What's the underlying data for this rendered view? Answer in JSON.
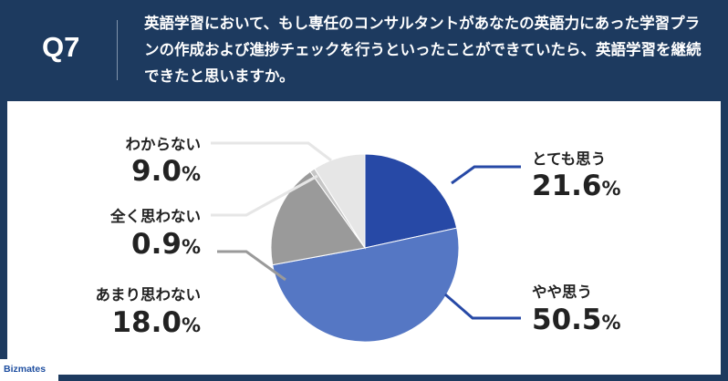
{
  "header": {
    "q_label": "Q7",
    "question": "英語学習において、もし専任のコンサルタントがあなたの英語力にあった学習プランの作成および進捗チェックを行うといったことができていたら、英語学習を継続できたと思いますか。"
  },
  "logo": {
    "text": "Bizmates"
  },
  "colors": {
    "background": "#1d3a5f",
    "panel": "#ffffff",
    "slices": [
      "#2749a6",
      "#5577c4",
      "#9a9a9a",
      "#c6c6c6",
      "#e6e6e6"
    ],
    "leader_lines": [
      "#2749a6",
      "#2749a6",
      "#9a9a9a",
      "#e6e6e6",
      "#e6e6e6"
    ]
  },
  "chart_data": {
    "type": "pie",
    "title": "",
    "start_angle_deg": 0,
    "direction": "clockwise",
    "slices": [
      {
        "label": "とても思う",
        "value": 21.6,
        "value_label": "21.6",
        "unit": "%"
      },
      {
        "label": "やや思う",
        "value": 50.5,
        "value_label": "50.5",
        "unit": "%"
      },
      {
        "label": "あまり思わない",
        "value": 18.0,
        "value_label": "18.0",
        "unit": "%"
      },
      {
        "label": "全く思わない",
        "value": 0.9,
        "value_label": "0.9",
        "unit": "%"
      },
      {
        "label": "わからない",
        "value": 9.0,
        "value_label": "9.0",
        "unit": "%"
      }
    ]
  }
}
